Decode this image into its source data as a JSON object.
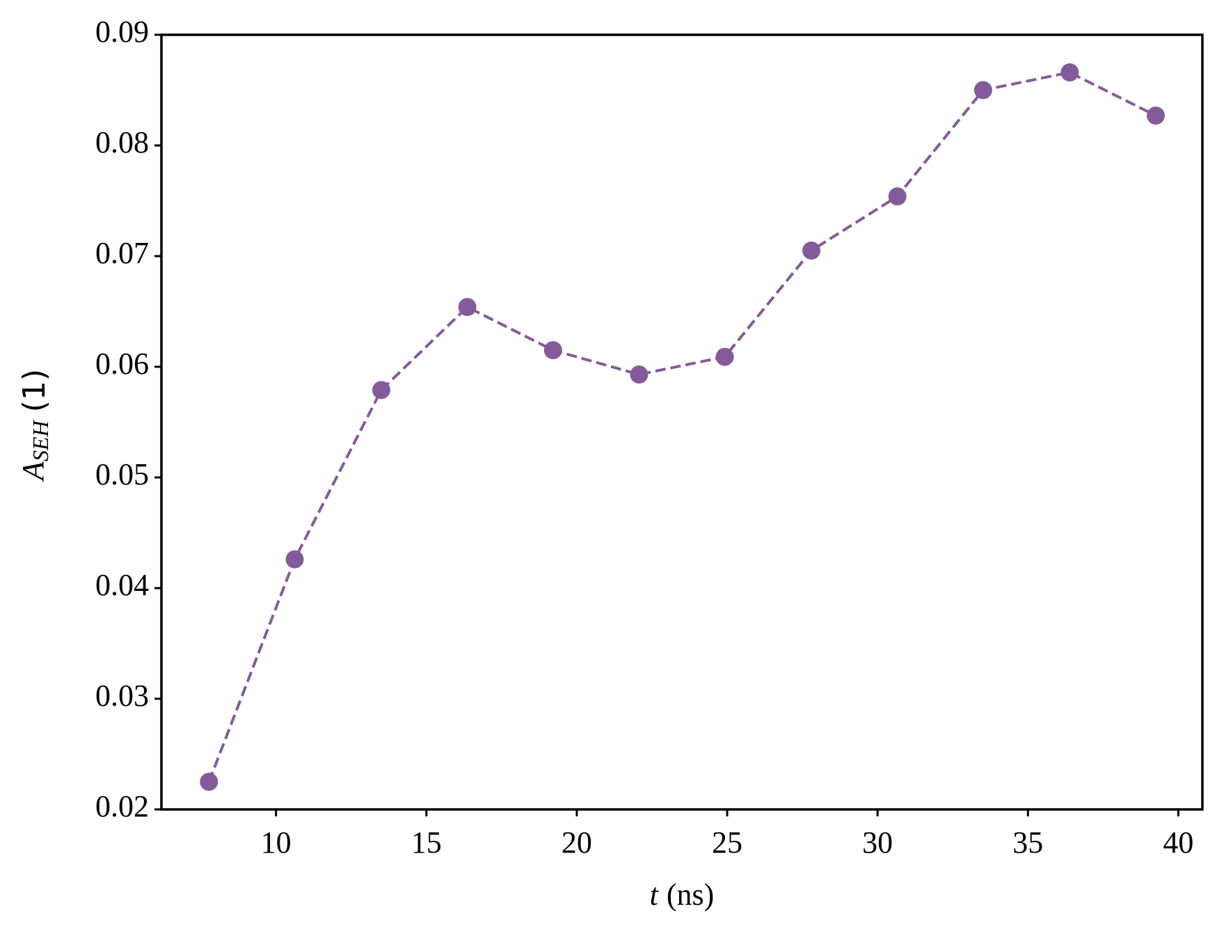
{
  "chart_data": {
    "type": "line",
    "x_label": {
      "symbol": "t",
      "unit": "(ns)"
    },
    "y_label": {
      "symbol": "A",
      "subscript": "SEH",
      "unit": "(1)"
    },
    "x": [
      7.77,
      10.62,
      13.5,
      16.36,
      19.21,
      22.07,
      24.92,
      27.8,
      30.66,
      33.51,
      36.39,
      39.25
    ],
    "series": [
      {
        "name": "A_SEH",
        "color": "#845b9a",
        "values": [
          0.0225,
          0.0426,
          0.0579,
          0.0654,
          0.0615,
          0.0593,
          0.0609,
          0.0705,
          0.0754,
          0.085,
          0.0866,
          0.0827
        ]
      }
    ],
    "xlim": [
      6.19,
      40.8
    ],
    "ylim": [
      0.02,
      0.09
    ],
    "xticks": [
      10,
      15,
      20,
      25,
      30,
      35,
      40
    ],
    "yticks": [
      {
        "value": 0.02,
        "label": "0.02"
      },
      {
        "value": 0.03,
        "label": "0.03"
      },
      {
        "value": 0.04,
        "label": "0.04"
      },
      {
        "value": 0.05,
        "label": "0.05"
      },
      {
        "value": 0.06,
        "label": "0.06"
      },
      {
        "value": 0.07,
        "label": "0.07"
      },
      {
        "value": 0.08,
        "label": "0.08"
      },
      {
        "value": 0.09,
        "label": "0.09"
      }
    ],
    "grid": false,
    "line_style": "dashed",
    "marker": "circle"
  }
}
